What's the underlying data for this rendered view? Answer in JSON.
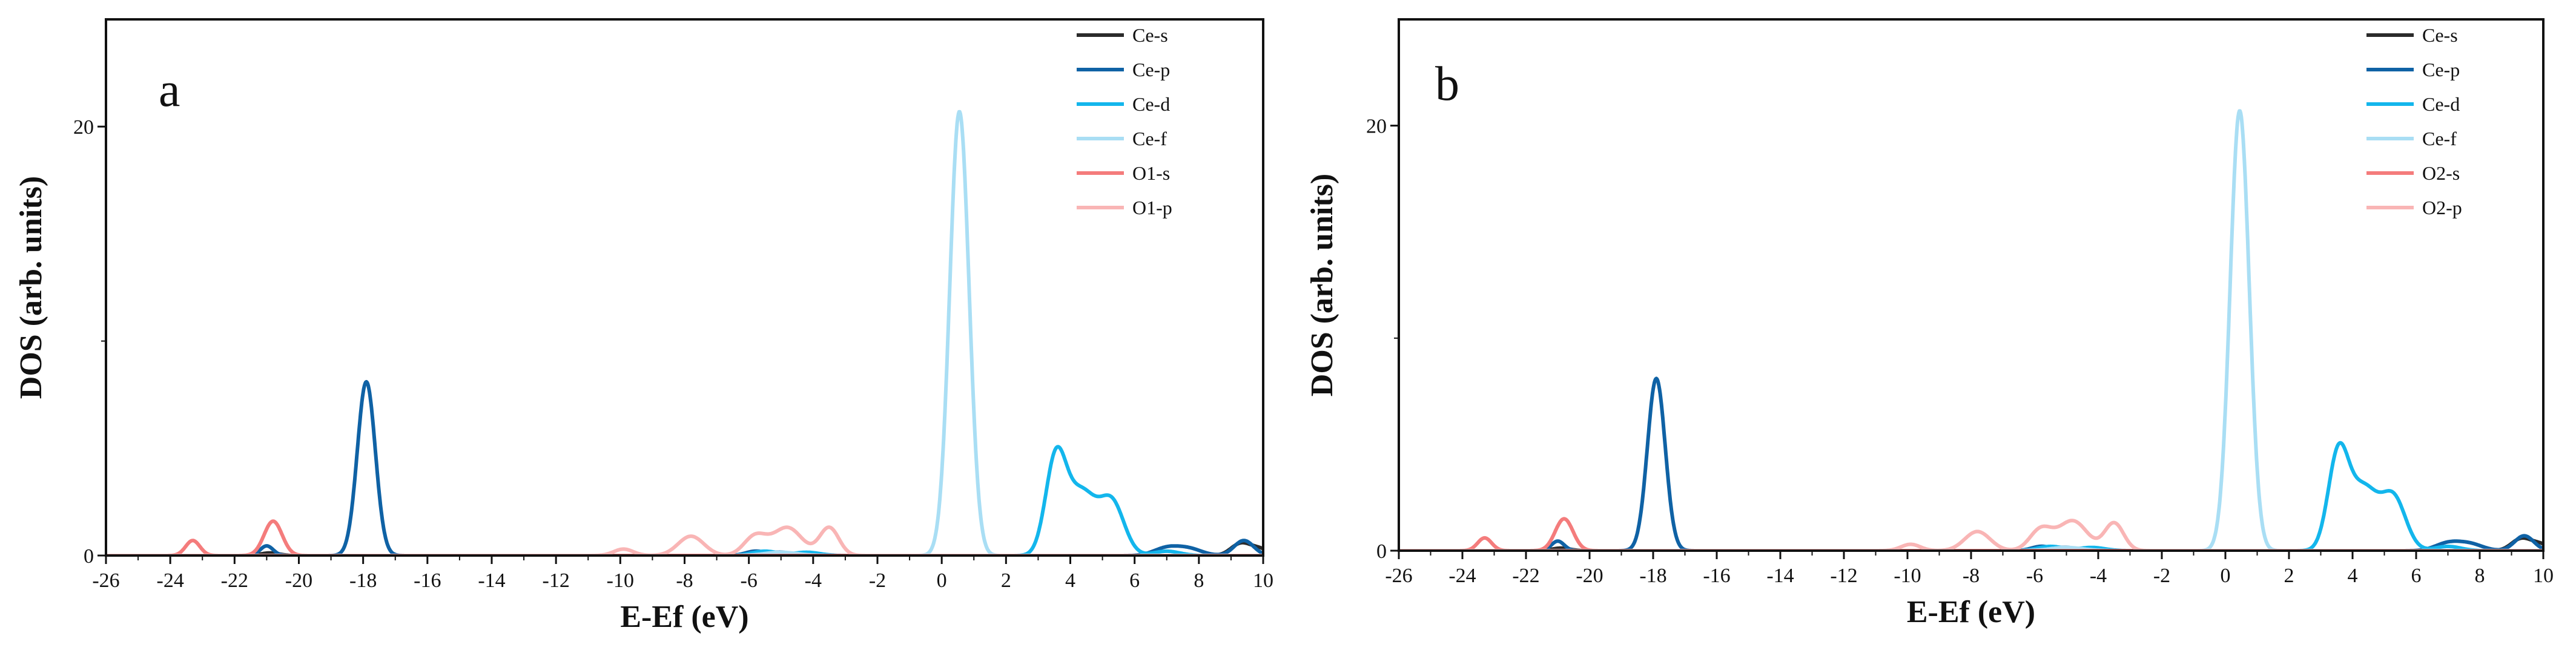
{
  "figure": {
    "background": "#ffffff"
  },
  "chart_data": [
    {
      "type": "line",
      "panel_label": "a",
      "xlabel": "E-Ef (eV)",
      "ylabel": "DOS (arb. units)",
      "xlim": [
        -26,
        10
      ],
      "ylim": [
        0,
        25
      ],
      "xticks": [
        -26,
        -24,
        -22,
        -20,
        -18,
        -16,
        -14,
        -12,
        -10,
        -8,
        -6,
        -4,
        -2,
        0,
        2,
        4,
        6,
        8,
        10
      ],
      "yticks": [
        0,
        20
      ],
      "grid": false,
      "legend_position": "top-right",
      "series": [
        {
          "name": "Ce-s",
          "color": "#2b2b2b",
          "peaks": [
            [
              -20.9,
              0.12,
              0.28
            ],
            [
              9.3,
              0.55,
              0.3
            ],
            [
              9.9,
              0.3,
              0.3
            ]
          ]
        },
        {
          "name": "Ce-p",
          "color": "#0f62a5",
          "peaks": [
            [
              -17.9,
              8.1,
              0.28
            ],
            [
              -21.0,
              0.45,
              0.2
            ],
            [
              -5.8,
              0.2,
              0.3
            ],
            [
              -5.0,
              0.15,
              0.3
            ],
            [
              7.0,
              0.35,
              0.4
            ],
            [
              7.7,
              0.3,
              0.4
            ],
            [
              9.4,
              0.7,
              0.3
            ]
          ]
        },
        {
          "name": "Ce-d",
          "color": "#13b6ec",
          "peaks": [
            [
              3.55,
              4.4,
              0.32
            ],
            [
              4.35,
              2.9,
              0.45
            ],
            [
              5.3,
              2.4,
              0.38
            ],
            [
              -5.5,
              0.2,
              0.4
            ],
            [
              -4.2,
              0.15,
              0.4
            ],
            [
              7.0,
              0.2,
              0.4
            ]
          ]
        },
        {
          "name": "Ce-f",
          "color": "#a9def4",
          "peaks": [
            [
              0.55,
              20.7,
              0.3
            ],
            [
              -5.0,
              0.15,
              0.5
            ]
          ]
        },
        {
          "name": "O1-s",
          "color": "#f47c7c",
          "peaks": [
            [
              -20.8,
              1.6,
              0.28
            ],
            [
              -23.3,
              0.7,
              0.22
            ]
          ]
        },
        {
          "name": "O1-p",
          "color": "#f9b5b5",
          "peaks": [
            [
              -7.8,
              0.9,
              0.4
            ],
            [
              -5.8,
              0.9,
              0.35
            ],
            [
              -4.8,
              1.3,
              0.45
            ],
            [
              -3.5,
              1.3,
              0.3
            ],
            [
              -9.9,
              0.3,
              0.3
            ]
          ]
        }
      ]
    },
    {
      "type": "line",
      "panel_label": "b",
      "xlabel": "E-Ef (eV)",
      "ylabel": "DOS (arb. units)",
      "xlim": [
        -26,
        10
      ],
      "ylim": [
        0,
        25
      ],
      "xticks": [
        -26,
        -24,
        -22,
        -20,
        -18,
        -16,
        -14,
        -12,
        -10,
        -8,
        -6,
        -4,
        -2,
        0,
        2,
        4,
        6,
        8,
        10
      ],
      "yticks": [
        0,
        20
      ],
      "grid": false,
      "legend_position": "top-right",
      "series": [
        {
          "name": "Ce-s",
          "color": "#2b2b2b",
          "peaks": [
            [
              -20.9,
              0.12,
              0.28
            ],
            [
              9.3,
              0.55,
              0.3
            ],
            [
              9.9,
              0.3,
              0.3
            ]
          ]
        },
        {
          "name": "Ce-p",
          "color": "#0f62a5",
          "peaks": [
            [
              -17.9,
              8.1,
              0.28
            ],
            [
              -21.0,
              0.45,
              0.2
            ],
            [
              -5.8,
              0.2,
              0.3
            ],
            [
              -5.0,
              0.15,
              0.3
            ],
            [
              7.0,
              0.35,
              0.4
            ],
            [
              7.7,
              0.3,
              0.4
            ],
            [
              9.4,
              0.7,
              0.3
            ]
          ]
        },
        {
          "name": "Ce-d",
          "color": "#13b6ec",
          "peaks": [
            [
              3.55,
              4.4,
              0.32
            ],
            [
              4.35,
              2.9,
              0.45
            ],
            [
              5.3,
              2.4,
              0.38
            ],
            [
              -5.5,
              0.2,
              0.4
            ],
            [
              -4.2,
              0.15,
              0.4
            ],
            [
              7.0,
              0.2,
              0.4
            ]
          ]
        },
        {
          "name": "Ce-f",
          "color": "#a9def4",
          "peaks": [
            [
              0.45,
              20.7,
              0.3
            ],
            [
              -5.0,
              0.15,
              0.5
            ]
          ]
        },
        {
          "name": "O2-s",
          "color": "#f47c7c",
          "peaks": [
            [
              -20.8,
              1.5,
              0.28
            ],
            [
              -23.3,
              0.6,
              0.22
            ]
          ]
        },
        {
          "name": "O2-p",
          "color": "#f9b5b5",
          "peaks": [
            [
              -7.8,
              0.9,
              0.4
            ],
            [
              -5.8,
              1.0,
              0.35
            ],
            [
              -4.8,
              1.4,
              0.45
            ],
            [
              -3.5,
              1.3,
              0.3
            ],
            [
              -9.9,
              0.3,
              0.3
            ]
          ]
        }
      ]
    }
  ]
}
